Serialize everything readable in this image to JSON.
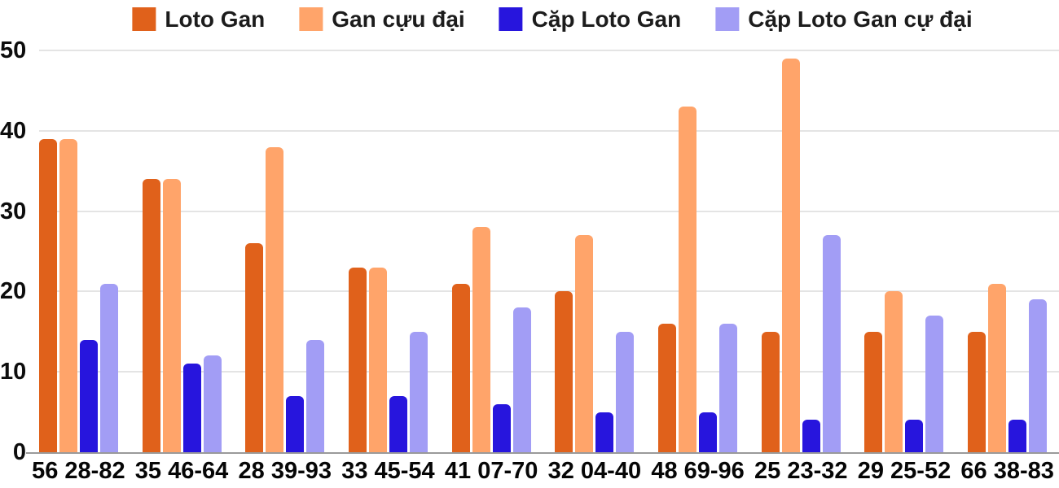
{
  "legend": {
    "items": [
      {
        "label": "Loto Gan",
        "color": "#e0611b"
      },
      {
        "label": "Gan cựu đại",
        "color": "#ffa46a"
      },
      {
        "label": "Cặp Loto Gan",
        "color": "#2715dd"
      },
      {
        "label": "Cặp Loto Gan cự đại",
        "color": "#a29df5"
      }
    ]
  },
  "chart_data": {
    "type": "bar",
    "title": "",
    "categories": [
      "56 28-82",
      "35 46-64",
      "28 39-93",
      "33 45-54",
      "41 07-70",
      "32 04-40",
      "48 69-96",
      "25 23-32",
      "29 25-52",
      "66 38-83"
    ],
    "series": [
      {
        "name": "Loto Gan",
        "color": "#e0611b",
        "values": [
          39,
          34,
          26,
          23,
          21,
          20,
          16,
          15,
          15,
          15
        ]
      },
      {
        "name": "Gan cựu đại",
        "color": "#ffa46a",
        "values": [
          39,
          34,
          38,
          23,
          28,
          27,
          43,
          49,
          20,
          21
        ]
      },
      {
        "name": "Cặp Loto Gan",
        "color": "#2715dd",
        "values": [
          14,
          11,
          7,
          7,
          6,
          5,
          5,
          4,
          4,
          4
        ]
      },
      {
        "name": "Cặp Loto Gan cự đại",
        "color": "#a29df5",
        "values": [
          21,
          12,
          14,
          15,
          18,
          15,
          16,
          27,
          17,
          19
        ]
      }
    ],
    "xlabel": "",
    "ylabel": "",
    "ylim": [
      0,
      50
    ],
    "yticks": [
      0,
      10,
      20,
      30,
      40,
      50
    ],
    "grid": true,
    "legend_position": "top",
    "colors": {
      "gridline": "#e4e4e4",
      "baseline": "#9a9a9a",
      "axis_text": "#0d0d0d"
    }
  }
}
